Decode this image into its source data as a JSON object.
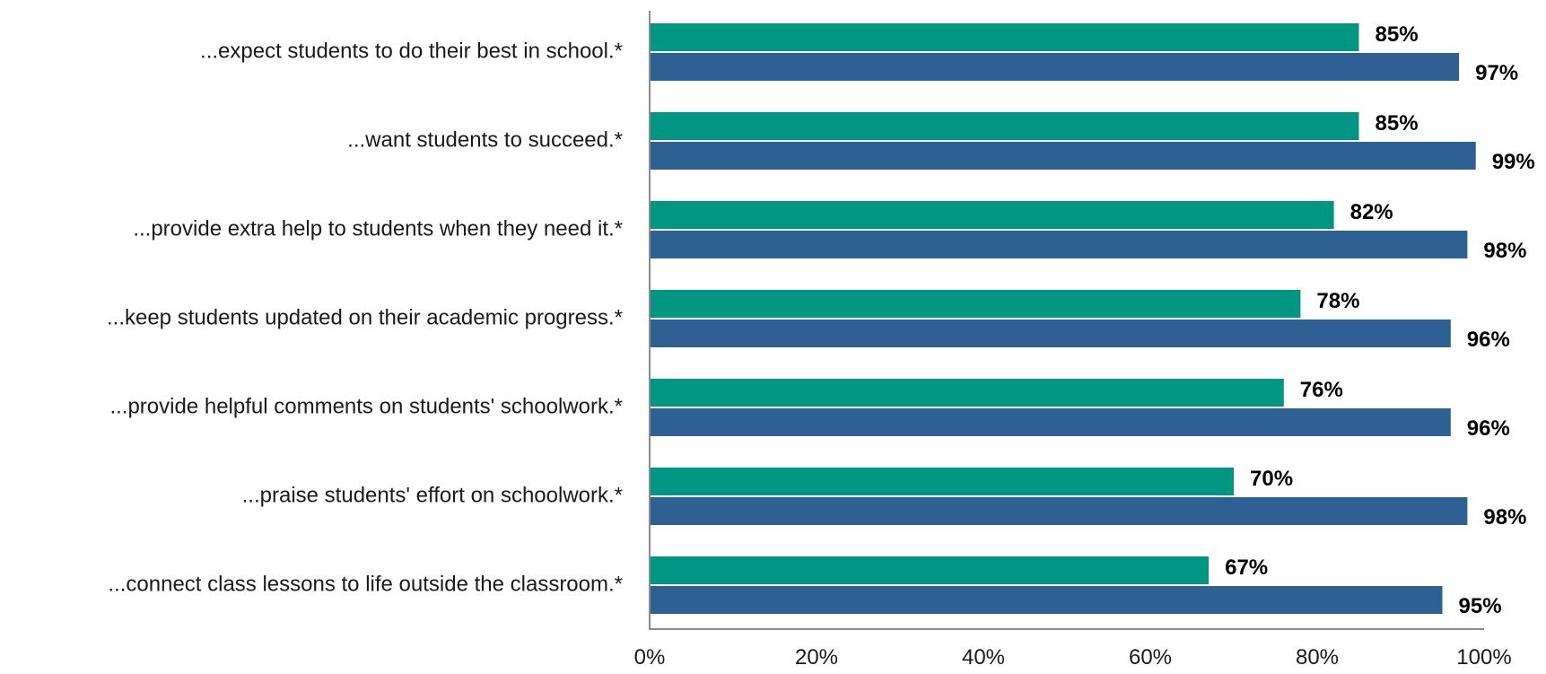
{
  "chart_data": {
    "type": "bar",
    "orientation": "horizontal",
    "categories": [
      "...expect students to do their best in school.*",
      "...want students to succeed.*",
      "...provide extra help to students when they need it.*",
      "...keep students updated on their academic progress.*",
      "...provide helpful comments on students' schoolwork.*",
      "...praise students' effort on schoolwork.*",
      "...connect class lessons to life outside the classroom.*"
    ],
    "series": [
      {
        "color": "#009684",
        "values": [
          85,
          85,
          82,
          78,
          76,
          70,
          67
        ]
      },
      {
        "color": "#2e6094",
        "values": [
          97,
          99,
          98,
          96,
          96,
          98,
          95
        ]
      }
    ],
    "value_suffix": "%",
    "xlim": [
      0,
      100
    ],
    "x_ticks": [
      0,
      20,
      40,
      60,
      80,
      100
    ],
    "x_tick_labels": [
      "0%",
      "20%",
      "40%",
      "60%",
      "80%",
      "100%"
    ],
    "grid": false,
    "legend": "none"
  }
}
